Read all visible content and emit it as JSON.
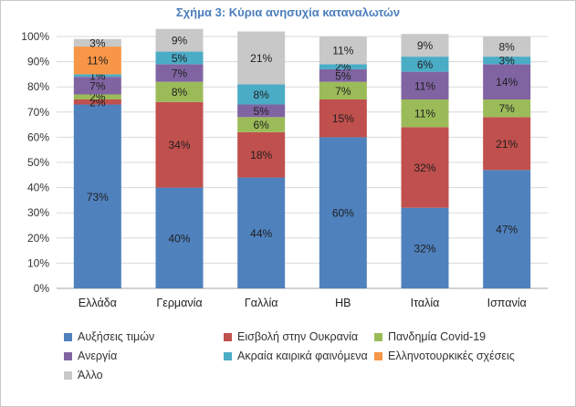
{
  "chart_data": {
    "type": "bar",
    "stacked": true,
    "title": "Σχήμα 3: Κύρια ανησυχία καταναλωτών",
    "xlabel": "",
    "ylabel": "",
    "ylim": [
      0,
      100
    ],
    "y_ticks": [
      "0%",
      "10%",
      "20%",
      "30%",
      "40%",
      "50%",
      "60%",
      "70%",
      "80%",
      "90%",
      "100%"
    ],
    "grid": true,
    "legend_position": "bottom",
    "categories": [
      "Ελλάδα",
      "Γερμανία",
      "Γαλλία",
      "ΗΒ",
      "Ιταλία",
      "Ισπανία"
    ],
    "series": [
      {
        "name": "Αυξήσεις τιμών",
        "color": "#4f81bd",
        "values": [
          73,
          40,
          44,
          60,
          32,
          47
        ]
      },
      {
        "name": "Εισβολή στην Ουκρανία",
        "color": "#c0504d",
        "values": [
          2,
          34,
          18,
          15,
          32,
          21
        ]
      },
      {
        "name": "Πανδημία Covid-19",
        "color": "#9bbb59",
        "values": [
          2,
          8,
          6,
          7,
          11,
          7
        ]
      },
      {
        "name": "Ανεργία",
        "color": "#8064a2",
        "values": [
          7,
          7,
          5,
          5,
          11,
          14
        ]
      },
      {
        "name": "Ακραία καιρικά φαινόμενα",
        "color": "#4bacc6",
        "values": [
          1,
          5,
          8,
          2,
          6,
          3
        ]
      },
      {
        "name": "Ελληνοτουρκικές σχέσεις",
        "color": "#f79646",
        "values": [
          11,
          0,
          0,
          0,
          0,
          0
        ]
      },
      {
        "name": "Άλλο",
        "color": "#c8c8c8",
        "values": [
          3,
          9,
          21,
          11,
          9,
          8
        ]
      }
    ],
    "data_labels": [
      [
        "73%",
        "2%",
        "2%",
        "7%",
        "1%",
        "11%",
        "3%"
      ],
      [
        "40%",
        "34%",
        "8%",
        "7%",
        "5%",
        "",
        "9%"
      ],
      [
        "44%",
        "18%",
        "6%",
        "5%",
        "8%",
        "",
        "21%"
      ],
      [
        "60%",
        "15%",
        "7%",
        "5%",
        "2%",
        "",
        "11%"
      ],
      [
        "32%",
        "32%",
        "11%",
        "11%",
        "6%",
        "",
        "9%"
      ],
      [
        "47%",
        "21%",
        "7%",
        "14%",
        "3%",
        "",
        "8%"
      ]
    ]
  }
}
